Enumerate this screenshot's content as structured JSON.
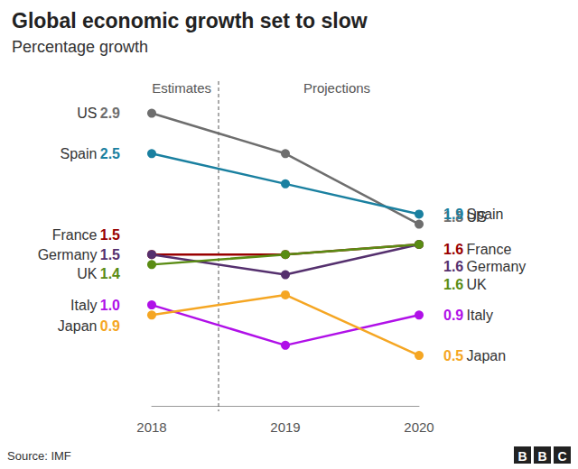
{
  "chart_data": {
    "type": "line",
    "title": "Global economic growth set to slow",
    "subtitle": "Percentage growth",
    "annotations": [
      "Estimates",
      "Projections"
    ],
    "source": "Source: IMF",
    "logo": "BBC",
    "categories": [
      "2018",
      "2019",
      "2020"
    ],
    "ylim": [
      0,
      3.2
    ],
    "grid": false,
    "tick_labels": "x",
    "data_labels": true,
    "marker": "circle",
    "series": [
      {
        "name": "US",
        "color": "#6e6e6e",
        "values": [
          2.9,
          2.5,
          1.8
        ],
        "value_labels": [
          "2.9",
          null,
          "1.8"
        ]
      },
      {
        "name": "Spain",
        "color": "#1a80a0",
        "values": [
          2.5,
          2.2,
          1.9
        ],
        "value_labels": [
          "2.5",
          null,
          "1.9"
        ]
      },
      {
        "name": "France",
        "color": "#990000",
        "values": [
          1.5,
          1.5,
          1.6
        ],
        "value_labels": [
          "1.5",
          null,
          "1.6"
        ]
      },
      {
        "name": "Germany",
        "color": "#55306e",
        "values": [
          1.5,
          1.3,
          1.6
        ],
        "value_labels": [
          "1.5",
          null,
          "1.6"
        ]
      },
      {
        "name": "UK",
        "color": "#5a8c14",
        "values": [
          1.4,
          1.5,
          1.6
        ],
        "value_labels": [
          "1.4",
          null,
          "1.6"
        ]
      },
      {
        "name": "Italy",
        "color": "#b010e8",
        "values": [
          1.0,
          0.6,
          0.9
        ],
        "value_labels": [
          "1.0",
          null,
          "0.9"
        ]
      },
      {
        "name": "Japan",
        "color": "#f5a623",
        "values": [
          0.9,
          1.1,
          0.5
        ],
        "value_labels": [
          "0.9",
          null,
          "0.5"
        ]
      }
    ]
  }
}
